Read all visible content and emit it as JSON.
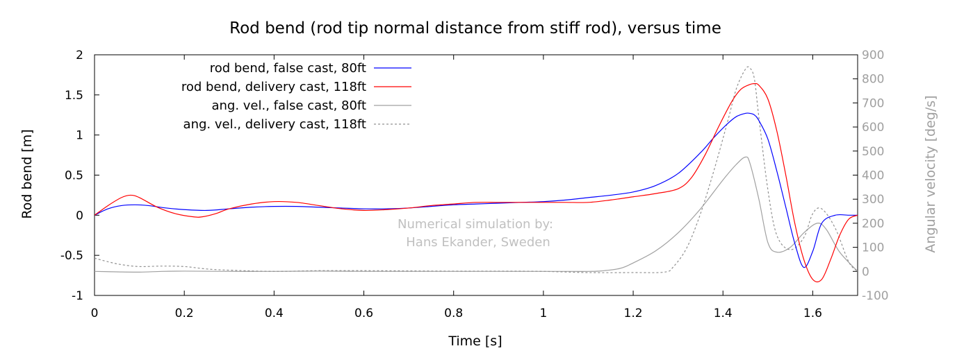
{
  "chart_data": {
    "type": "line",
    "title": "Rod bend (rod tip normal distance from stiff rod), versus time",
    "xlabel": "Time [s]",
    "ylabel": "Rod bend [m]",
    "y2label": "Angular velocity [deg/s]",
    "xlim": [
      0,
      1.7
    ],
    "ylim": [
      -1,
      2
    ],
    "y2lim": [
      -100,
      900
    ],
    "xticks": [
      "0",
      "0.2",
      "0.4",
      "0.6",
      "0.8",
      "1",
      "1.2",
      "1.4",
      "1.6"
    ],
    "yticks": [
      "-1",
      "-0.5",
      "0",
      "0.5",
      "1",
      "1.5",
      "2"
    ],
    "y2ticks": [
      "-100",
      "0",
      "100",
      "200",
      "300",
      "400",
      "500",
      "600",
      "700",
      "800",
      "900"
    ],
    "grid": false,
    "legend_position": "top-left",
    "annotation": [
      "Numerical simulation by:",
      "Hans Ekander, Sweden"
    ],
    "series": [
      {
        "name": "rod bend, false cast, 80ft",
        "axis": "y1",
        "color": "#0000ff",
        "dash": "solid",
        "x": [
          0,
          0.03,
          0.06,
          0.09,
          0.12,
          0.16,
          0.2,
          0.25,
          0.3,
          0.35,
          0.4,
          0.45,
          0.5,
          0.55,
          0.6,
          0.65,
          0.7,
          0.75,
          0.8,
          0.85,
          0.9,
          0.95,
          1.0,
          1.05,
          1.1,
          1.15,
          1.2,
          1.25,
          1.3,
          1.35,
          1.38,
          1.41,
          1.43,
          1.45,
          1.46,
          1.47,
          1.48,
          1.5,
          1.52,
          1.54,
          1.56,
          1.58,
          1.6,
          1.62,
          1.65,
          1.68,
          1.7
        ],
        "y": [
          0,
          0.08,
          0.12,
          0.13,
          0.12,
          0.09,
          0.07,
          0.06,
          0.08,
          0.1,
          0.11,
          0.11,
          0.1,
          0.09,
          0.08,
          0.08,
          0.09,
          0.11,
          0.13,
          0.14,
          0.15,
          0.16,
          0.17,
          0.19,
          0.22,
          0.25,
          0.29,
          0.37,
          0.52,
          0.78,
          0.97,
          1.14,
          1.23,
          1.27,
          1.27,
          1.25,
          1.18,
          0.95,
          0.55,
          0.1,
          -0.35,
          -0.65,
          -0.45,
          -0.1,
          0.0,
          0.0,
          0.0
        ]
      },
      {
        "name": "rod bend, delivery cast, 118ft",
        "axis": "y1",
        "color": "#ff0000",
        "dash": "solid",
        "x": [
          0,
          0.03,
          0.06,
          0.08,
          0.1,
          0.14,
          0.18,
          0.22,
          0.24,
          0.27,
          0.3,
          0.35,
          0.4,
          0.45,
          0.5,
          0.55,
          0.6,
          0.65,
          0.7,
          0.75,
          0.8,
          0.85,
          0.9,
          0.95,
          1.0,
          1.05,
          1.1,
          1.15,
          1.2,
          1.25,
          1.3,
          1.33,
          1.36,
          1.39,
          1.42,
          1.44,
          1.46,
          1.47,
          1.48,
          1.5,
          1.52,
          1.54,
          1.56,
          1.58,
          1.6,
          1.62,
          1.64,
          1.66,
          1.68,
          1.7
        ],
        "y": [
          0,
          0.12,
          0.22,
          0.25,
          0.22,
          0.1,
          0.02,
          -0.02,
          -0.02,
          0.02,
          0.08,
          0.14,
          0.17,
          0.16,
          0.12,
          0.08,
          0.06,
          0.07,
          0.09,
          0.12,
          0.14,
          0.16,
          0.16,
          0.16,
          0.16,
          0.16,
          0.16,
          0.19,
          0.23,
          0.27,
          0.33,
          0.47,
          0.75,
          1.1,
          1.42,
          1.57,
          1.63,
          1.64,
          1.62,
          1.45,
          1.05,
          0.5,
          -0.1,
          -0.55,
          -0.8,
          -0.8,
          -0.55,
          -0.25,
          -0.05,
          0.0
        ]
      },
      {
        "name": "ang. vel., false cast, 80ft",
        "axis": "y2",
        "color": "#a0a0a0",
        "dash": "solid",
        "x": [
          0,
          0.05,
          0.1,
          0.15,
          0.2,
          0.3,
          0.4,
          0.5,
          0.6,
          0.7,
          0.8,
          0.9,
          1.0,
          1.05,
          1.1,
          1.13,
          1.17,
          1.2,
          1.25,
          1.3,
          1.35,
          1.4,
          1.43,
          1.45,
          1.46,
          1.48,
          1.5,
          1.52,
          1.55,
          1.58,
          1.61,
          1.63,
          1.66,
          1.7
        ],
        "y": [
          0,
          -2,
          -3,
          0,
          1,
          0,
          0,
          1,
          0,
          0,
          0,
          0,
          0,
          0,
          0,
          2,
          12,
          35,
          85,
          160,
          260,
          380,
          445,
          475,
          450,
          300,
          120,
          80,
          100,
          160,
          200,
          175,
          80,
          0
        ]
      },
      {
        "name": "ang. vel., delivery cast, 118ft",
        "axis": "y2",
        "color": "#909090",
        "dash": "dashed",
        "x": [
          0,
          0.03,
          0.06,
          0.1,
          0.15,
          0.2,
          0.25,
          0.3,
          0.4,
          0.5,
          0.6,
          0.7,
          0.8,
          0.9,
          1.0,
          1.1,
          1.2,
          1.27,
          1.29,
          1.32,
          1.35,
          1.38,
          1.41,
          1.43,
          1.45,
          1.46,
          1.47,
          1.48,
          1.5,
          1.52,
          1.55,
          1.58,
          1.6,
          1.62,
          1.65,
          1.68,
          1.7
        ],
        "y": [
          55,
          40,
          28,
          20,
          22,
          20,
          10,
          5,
          0,
          3,
          3,
          2,
          1,
          1,
          0,
          -5,
          -5,
          -3,
          20,
          100,
          240,
          420,
          620,
          760,
          840,
          845,
          800,
          640,
          340,
          150,
          90,
          140,
          240,
          260,
          180,
          40,
          0
        ]
      }
    ]
  }
}
